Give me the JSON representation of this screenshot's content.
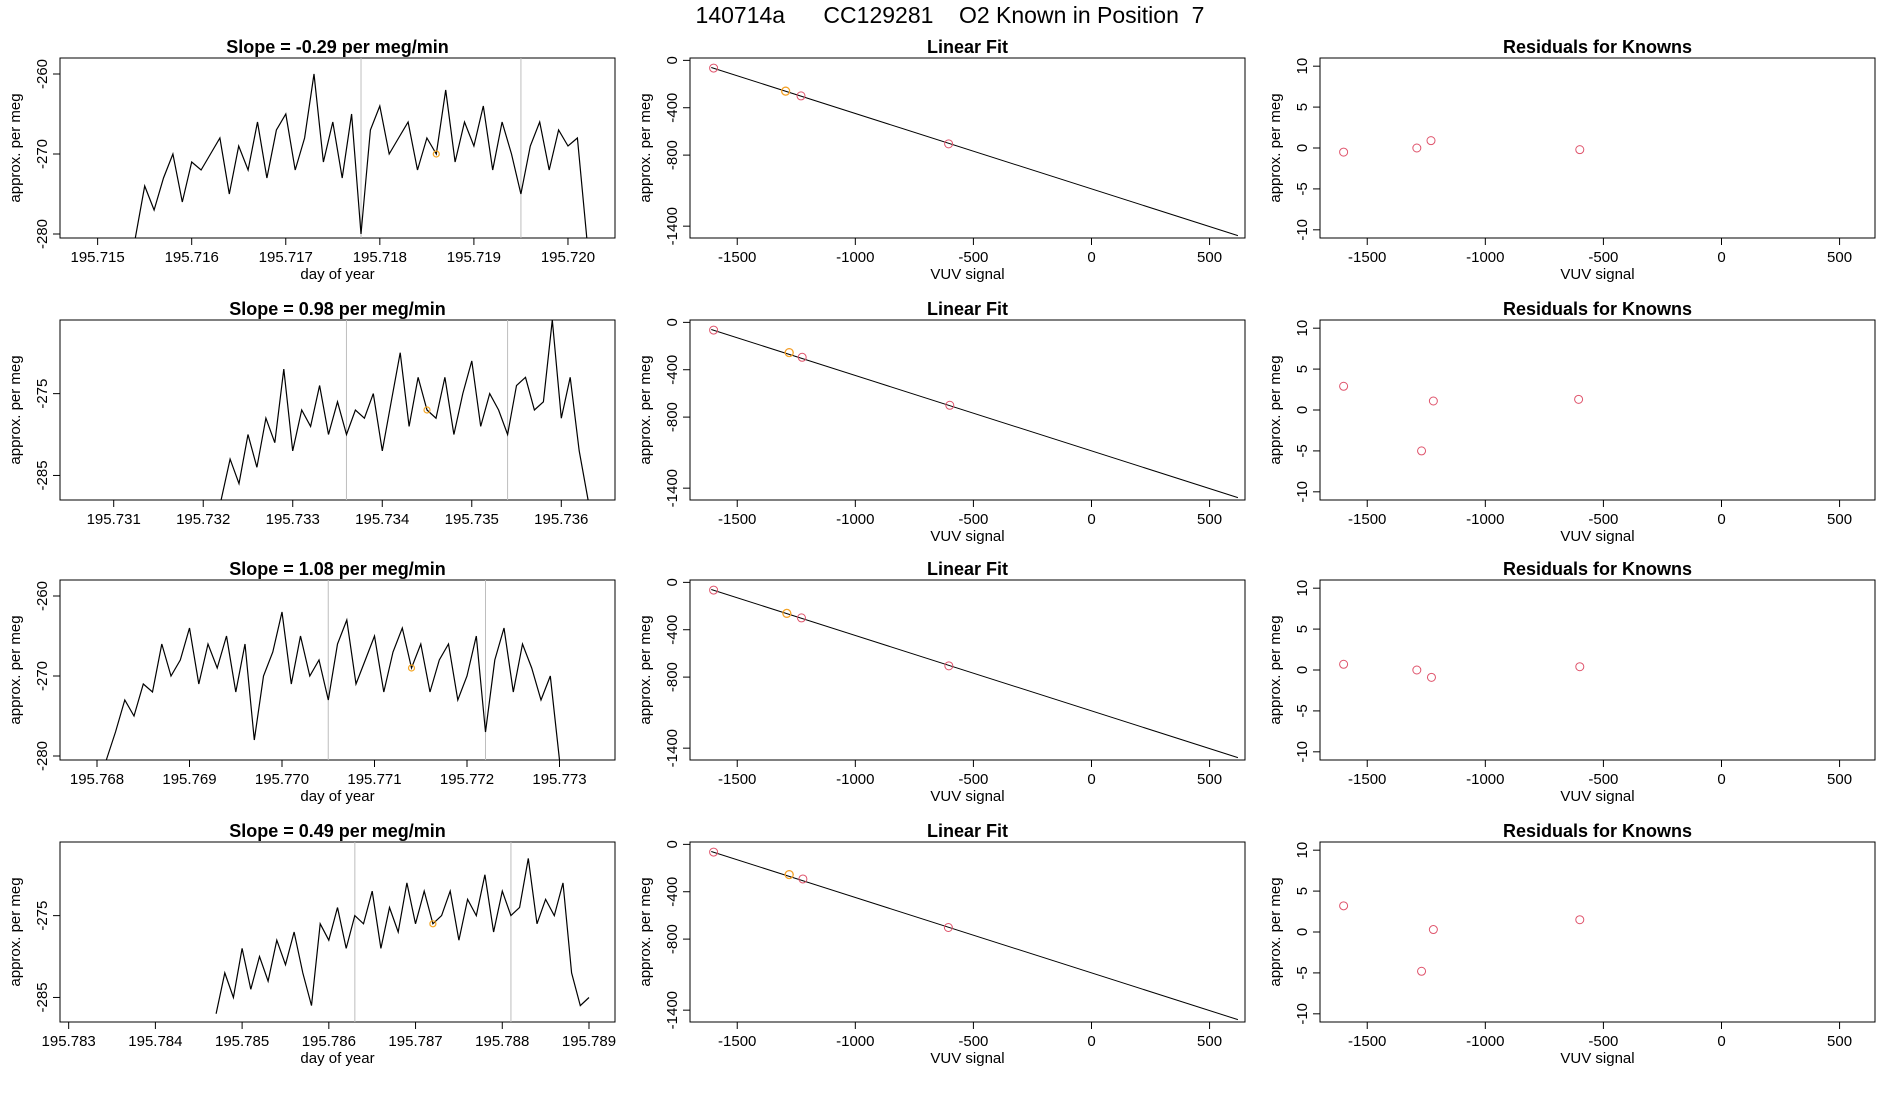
{
  "figure": {
    "title": "140714a      CC129281    O2 Known in Position  7"
  },
  "colors": {
    "line": "#000000",
    "residual_points": "#DF536B",
    "fit_points": "#DF536B",
    "highlight_points": "#F5A623",
    "vline": "#bebebe"
  },
  "chart_data": [
    {
      "type": "line",
      "panel": "row1-timeseries",
      "title": "Slope =  -0.29  per meg/min",
      "xlabel": "day of year",
      "ylabel": "approx. per meg",
      "xlim": [
        195.7146,
        195.7205
      ],
      "ylim": [
        -280.5,
        -258
      ],
      "xticks": [
        195.715,
        195.716,
        195.717,
        195.718,
        195.719,
        195.72
      ],
      "xtick_labels": [
        "195.715",
        "195.716",
        "195.717",
        "195.718",
        "195.719",
        "195.720"
      ],
      "yticks": [
        -260,
        -270,
        -280
      ],
      "ytick_labels": [
        "-260",
        "-270",
        "-280"
      ],
      "vlines": [
        195.7178,
        195.7195
      ],
      "highlight": {
        "x": 195.7186,
        "y": -270
      },
      "x": [
        195.7154,
        195.7155,
        195.7156,
        195.7157,
        195.7158,
        195.7159,
        195.716,
        195.7161,
        195.7162,
        195.7163,
        195.7164,
        195.7165,
        195.7166,
        195.7167,
        195.7168,
        195.7169,
        195.717,
        195.7171,
        195.7172,
        195.7173,
        195.7174,
        195.7175,
        195.7176,
        195.7177,
        195.7178,
        195.7179,
        195.718,
        195.7181,
        195.7182,
        195.7183,
        195.7184,
        195.7185,
        195.7186,
        195.7187,
        195.7188,
        195.7189,
        195.719,
        195.7191,
        195.7192,
        195.7193,
        195.7194,
        195.7195,
        195.7196,
        195.7197,
        195.7198,
        195.7199,
        195.72,
        195.7201,
        195.7202
      ],
      "y": [
        -282,
        -274,
        -277,
        -273,
        -270,
        -276,
        -271,
        -272,
        -270,
        -268,
        -275,
        -269,
        -272,
        -266,
        -273,
        -267,
        -265,
        -272,
        -268,
        -260,
        -271,
        -266,
        -273,
        -265,
        -280,
        -267,
        -264,
        -270,
        -268,
        -266,
        -272,
        -268,
        -270,
        -262,
        -271,
        -266,
        -269,
        -264,
        -272,
        -266,
        -270,
        -275,
        -269,
        -266,
        -272,
        -267,
        -269,
        -268,
        -282
      ]
    },
    {
      "type": "scatter",
      "panel": "row1-fit",
      "title": "Linear Fit",
      "xlabel": "VUV signal",
      "ylabel": "approx. per meg",
      "xlim": [
        -1700,
        650
      ],
      "ylim": [
        -1500,
        20
      ],
      "xticks": [
        -1500,
        -1000,
        -500,
        0,
        500
      ],
      "xtick_labels": [
        "-1500",
        "-1000",
        "-500",
        "0",
        "500"
      ],
      "yticks": [
        0,
        -400,
        -800,
        -1400
      ],
      "ytick_labels": [
        "0",
        "-400",
        "-800",
        "-1400"
      ],
      "fit_line": {
        "x": [
          -1610,
          620
        ],
        "y": [
          -60,
          -1480
        ]
      },
      "points_x": [
        -1600,
        -1295,
        -1230,
        -605
      ],
      "points_y": [
        -65,
        -260,
        -300,
        -705
      ],
      "highlight_x": [
        -1295
      ],
      "highlight_y": [
        -260
      ]
    },
    {
      "type": "scatter",
      "panel": "row1-residuals",
      "title": "Residuals for Knowns",
      "xlabel": "VUV signal",
      "ylabel": "approx. per meg",
      "xlim": [
        -1700,
        650
      ],
      "ylim": [
        -11,
        11
      ],
      "xticks": [
        -1500,
        -1000,
        -500,
        0,
        500
      ],
      "xtick_labels": [
        "-1500",
        "-1000",
        "-500",
        "0",
        "500"
      ],
      "yticks": [
        10,
        5,
        0,
        -5,
        -10
      ],
      "ytick_labels": [
        "10",
        "5",
        "0",
        "-5",
        "-10"
      ],
      "x": [
        -1600,
        -1290,
        -1230,
        -600
      ],
      "y": [
        -0.5,
        0,
        0.9,
        -0.2
      ]
    },
    {
      "type": "line",
      "panel": "row2-timeseries",
      "title": "Slope =  0.98  per meg/min",
      "xlabel": "",
      "ylabel": "approx. per meg",
      "xlim": [
        195.7304,
        195.7366
      ],
      "ylim": [
        -288,
        -266
      ],
      "xticks": [
        195.731,
        195.732,
        195.733,
        195.734,
        195.735,
        195.736
      ],
      "xtick_labels": [
        "195.731",
        "195.732",
        "195.733",
        "195.734",
        "195.735",
        "195.736"
      ],
      "yticks": [
        -275,
        -285
      ],
      "ytick_labels": [
        "-275",
        "-285"
      ],
      "vlines": [
        195.7336,
        195.7354
      ],
      "highlight": {
        "x": 195.7345,
        "y": -277
      },
      "x": [
        195.7322,
        195.7323,
        195.7324,
        195.7325,
        195.7326,
        195.7327,
        195.7328,
        195.7329,
        195.733,
        195.7331,
        195.7332,
        195.7333,
        195.7334,
        195.7335,
        195.7336,
        195.7337,
        195.7338,
        195.7339,
        195.734,
        195.7341,
        195.7342,
        195.7343,
        195.7344,
        195.7345,
        195.7346,
        195.7347,
        195.7348,
        195.7349,
        195.735,
        195.7351,
        195.7352,
        195.7353,
        195.7354,
        195.7355,
        195.7356,
        195.7357,
        195.7358,
        195.7359,
        195.736,
        195.7361,
        195.7362,
        195.7363
      ],
      "y": [
        -289,
        -283,
        -286,
        -280,
        -284,
        -278,
        -281,
        -272,
        -282,
        -277,
        -279,
        -274,
        -280,
        -276,
        -280,
        -277,
        -278,
        -275,
        -282,
        -276,
        -270,
        -279,
        -273,
        -277,
        -278,
        -273,
        -280,
        -275,
        -271,
        -279,
        -275,
        -277,
        -280,
        -274,
        -273,
        -277,
        -276,
        -266,
        -278,
        -273,
        -282,
        -290
      ]
    },
    {
      "type": "scatter",
      "panel": "row2-fit",
      "title": "Linear Fit",
      "xlabel": "VUV signal",
      "ylabel": "approx. per meg",
      "xlim": [
        -1700,
        650
      ],
      "ylim": [
        -1500,
        20
      ],
      "xticks": [
        -1500,
        -1000,
        -500,
        0,
        500
      ],
      "xtick_labels": [
        "-1500",
        "-1000",
        "-500",
        "0",
        "500"
      ],
      "yticks": [
        0,
        -400,
        -800,
        -1400
      ],
      "ytick_labels": [
        "0",
        "-400",
        "-800",
        "-1400"
      ],
      "fit_line": {
        "x": [
          -1610,
          620
        ],
        "y": [
          -60,
          -1480
        ]
      },
      "points_x": [
        -1600,
        -1280,
        -1225,
        -600
      ],
      "points_y": [
        -65,
        -255,
        -295,
        -700
      ],
      "highlight_x": [
        -1280
      ],
      "highlight_y": [
        -255
      ]
    },
    {
      "type": "scatter",
      "panel": "row2-residuals",
      "title": "Residuals for Knowns",
      "xlabel": "VUV signal",
      "ylabel": "approx. per meg",
      "xlim": [
        -1700,
        650
      ],
      "ylim": [
        -11,
        11
      ],
      "xticks": [
        -1500,
        -1000,
        -500,
        0,
        500
      ],
      "xtick_labels": [
        "-1500",
        "-1000",
        "-500",
        "0",
        "500"
      ],
      "yticks": [
        10,
        5,
        0,
        -5,
        -10
      ],
      "ytick_labels": [
        "10",
        "5",
        "0",
        "-5",
        "-10"
      ],
      "x": [
        -1600,
        -1270,
        -1220,
        -605
      ],
      "y": [
        2.9,
        -5,
        1.1,
        1.3
      ]
    },
    {
      "type": "line",
      "panel": "row3-timeseries",
      "title": "Slope =  1.08  per meg/min",
      "xlabel": "day of year",
      "ylabel": "approx. per meg",
      "xlim": [
        195.7676,
        195.7736
      ],
      "ylim": [
        -280.5,
        -258
      ],
      "xticks": [
        195.768,
        195.769,
        195.77,
        195.771,
        195.772,
        195.773
      ],
      "xtick_labels": [
        "195.768",
        "195.769",
        "195.770",
        "195.771",
        "195.772",
        "195.773"
      ],
      "yticks": [
        -260,
        -270,
        -280
      ],
      "ytick_labels": [
        "-260",
        "-270",
        "-280"
      ],
      "vlines": [
        195.7705,
        195.7722
      ],
      "highlight": {
        "x": 195.7714,
        "y": -269
      },
      "x": [
        195.7681,
        195.7682,
        195.7683,
        195.7684,
        195.7685,
        195.7686,
        195.7687,
        195.7688,
        195.7689,
        195.769,
        195.7691,
        195.7692,
        195.7693,
        195.7694,
        195.7695,
        195.7696,
        195.7697,
        195.7698,
        195.7699,
        195.77,
        195.7701,
        195.7702,
        195.7703,
        195.7704,
        195.7705,
        195.7706,
        195.7707,
        195.7708,
        195.7709,
        195.771,
        195.7711,
        195.7712,
        195.7713,
        195.7714,
        195.7715,
        195.7716,
        195.7717,
        195.7718,
        195.7719,
        195.772,
        195.7721,
        195.7722,
        195.7723,
        195.7724,
        195.7725,
        195.7726,
        195.7727,
        195.7728,
        195.7729,
        195.773
      ],
      "y": [
        -282,
        -277,
        -273,
        -275,
        -271,
        -272,
        -266,
        -270,
        -268,
        -264,
        -271,
        -266,
        -269,
        -265,
        -272,
        -266,
        -278,
        -270,
        -267,
        -262,
        -271,
        -265,
        -270,
        -268,
        -273,
        -266,
        -263,
        -271,
        -268,
        -265,
        -272,
        -267,
        -264,
        -269,
        -266,
        -272,
        -268,
        -266,
        -273,
        -270,
        -265,
        -277,
        -268,
        -264,
        -272,
        -266,
        -269,
        -273,
        -270,
        -282
      ]
    },
    {
      "type": "scatter",
      "panel": "row3-fit",
      "title": "Linear Fit",
      "xlabel": "VUV signal",
      "ylabel": "approx. per meg",
      "xlim": [
        -1700,
        650
      ],
      "ylim": [
        -1500,
        20
      ],
      "xticks": [
        -1500,
        -1000,
        -500,
        0,
        500
      ],
      "xtick_labels": [
        "-1500",
        "-1000",
        "-500",
        "0",
        "500"
      ],
      "yticks": [
        0,
        -400,
        -800,
        -1400
      ],
      "ytick_labels": [
        "0",
        "-400",
        "-800",
        "-1400"
      ],
      "fit_line": {
        "x": [
          -1610,
          620
        ],
        "y": [
          -60,
          -1480
        ]
      },
      "points_x": [
        -1600,
        -1290,
        -1228,
        -604
      ],
      "points_y": [
        -65,
        -262,
        -300,
        -705
      ],
      "highlight_x": [
        -1290
      ],
      "highlight_y": [
        -262
      ]
    },
    {
      "type": "scatter",
      "panel": "row3-residuals",
      "title": "Residuals for Knowns",
      "xlabel": "VUV signal",
      "ylabel": "approx. per meg",
      "xlim": [
        -1700,
        650
      ],
      "ylim": [
        -11,
        11
      ],
      "xticks": [
        -1500,
        -1000,
        -500,
        0,
        500
      ],
      "xtick_labels": [
        "-1500",
        "-1000",
        "-500",
        "0",
        "500"
      ],
      "yticks": [
        10,
        5,
        0,
        -5,
        -10
      ],
      "ytick_labels": [
        "10",
        "5",
        "0",
        "-5",
        "-10"
      ],
      "x": [
        -1600,
        -1290,
        -1228,
        -600
      ],
      "y": [
        0.7,
        0,
        -0.9,
        0.4
      ]
    },
    {
      "type": "line",
      "panel": "row4-timeseries",
      "title": "Slope =  0.49  per meg/min",
      "xlabel": "day of year",
      "ylabel": "approx. per meg",
      "xlim": [
        195.7829,
        195.7893
      ],
      "ylim": [
        -288,
        -266
      ],
      "xticks": [
        195.783,
        195.784,
        195.785,
        195.786,
        195.787,
        195.788,
        195.789
      ],
      "xtick_labels": [
        "195.783",
        "195.784",
        "195.785",
        "195.786",
        "195.787",
        "195.788",
        "195.789"
      ],
      "yticks": [
        -275,
        -285
      ],
      "ytick_labels": [
        "-275",
        "-285"
      ],
      "vlines": [
        195.7863,
        195.7881
      ],
      "highlight": {
        "x": 195.7872,
        "y": -276
      },
      "x": [
        195.7847,
        195.7848,
        195.7849,
        195.785,
        195.7851,
        195.7852,
        195.7853,
        195.7854,
        195.7855,
        195.7856,
        195.7857,
        195.7858,
        195.7859,
        195.786,
        195.7861,
        195.7862,
        195.7863,
        195.7864,
        195.7865,
        195.7866,
        195.7867,
        195.7868,
        195.7869,
        195.787,
        195.7871,
        195.7872,
        195.7873,
        195.7874,
        195.7875,
        195.7876,
        195.7877,
        195.7878,
        195.7879,
        195.788,
        195.7881,
        195.7882,
        195.7883,
        195.7884,
        195.7885,
        195.7886,
        195.7887,
        195.7888,
        195.7889,
        195.789
      ],
      "y": [
        -287,
        -282,
        -285,
        -279,
        -284,
        -280,
        -283,
        -278,
        -281,
        -277,
        -282,
        -286,
        -276,
        -278,
        -274,
        -279,
        -275,
        -276,
        -272,
        -279,
        -274,
        -277,
        -271,
        -276,
        -272,
        -276,
        -275,
        -272,
        -278,
        -273,
        -275,
        -270,
        -277,
        -272,
        -275,
        -274,
        -268,
        -276,
        -273,
        -275,
        -271,
        -282,
        -286,
        -285
      ]
    },
    {
      "type": "scatter",
      "panel": "row4-fit",
      "title": "Linear Fit",
      "xlabel": "VUV signal",
      "ylabel": "approx. per meg",
      "xlim": [
        -1700,
        650
      ],
      "ylim": [
        -1500,
        20
      ],
      "xticks": [
        -1500,
        -1000,
        -500,
        0,
        500
      ],
      "xtick_labels": [
        "-1500",
        "-1000",
        "-500",
        "0",
        "500"
      ],
      "yticks": [
        0,
        -400,
        -800,
        -1400
      ],
      "ytick_labels": [
        "0",
        "-400",
        "-800",
        "-1400"
      ],
      "fit_line": {
        "x": [
          -1610,
          620
        ],
        "y": [
          -60,
          -1480
        ]
      },
      "points_x": [
        -1600,
        -1280,
        -1222,
        -606
      ],
      "points_y": [
        -65,
        -255,
        -292,
        -702
      ],
      "highlight_x": [
        -1280
      ],
      "highlight_y": [
        -255
      ]
    },
    {
      "type": "scatter",
      "panel": "row4-residuals",
      "title": "Residuals for Knowns",
      "xlabel": "VUV signal",
      "ylabel": "approx. per meg",
      "xlim": [
        -1700,
        650
      ],
      "ylim": [
        -11,
        11
      ],
      "xticks": [
        -1500,
        -1000,
        -500,
        0,
        500
      ],
      "xtick_labels": [
        "-1500",
        "-1000",
        "-500",
        "0",
        "500"
      ],
      "yticks": [
        10,
        5,
        0,
        -5,
        -10
      ],
      "ytick_labels": [
        "10",
        "5",
        "0",
        "-5",
        "-10"
      ],
      "x": [
        -1600,
        -1270,
        -1220,
        -600
      ],
      "y": [
        3.2,
        -4.8,
        0.3,
        1.5
      ]
    }
  ]
}
